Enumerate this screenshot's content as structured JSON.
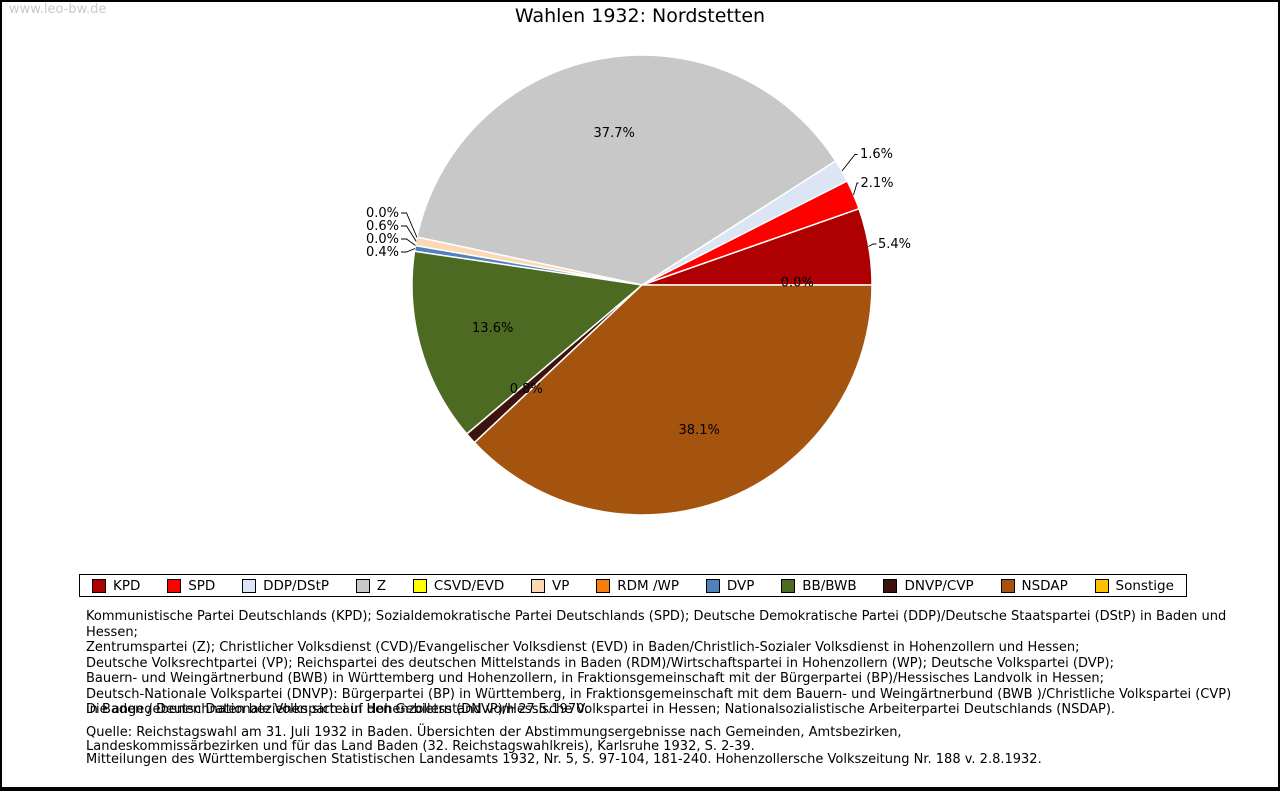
{
  "watermark": "www.leo-bw.de",
  "title": "Wahlen 1932: Nordstetten",
  "chart_data": {
    "type": "pie",
    "title": "Wahlen 1932: Nordstetten",
    "start_angle_deg": 0,
    "direction": "counterclockwise",
    "legend_position": "bottom",
    "unit": "percent",
    "slices": [
      {
        "name": "KPD",
        "value": 5.4,
        "label": "5.4%",
        "color": "#ae0000"
      },
      {
        "name": "SPD",
        "value": 2.1,
        "label": "2.1%",
        "color": "#ff0000"
      },
      {
        "name": "DDP/DStP",
        "value": 1.6,
        "label": "1.6%",
        "color": "#dbe5f3"
      },
      {
        "name": "Z",
        "value": 37.7,
        "label": "37.7%",
        "color": "#c8c8c8"
      },
      {
        "name": "CSVD/EVD",
        "value": 0.0,
        "label": "0.0%",
        "color": "#ffff00"
      },
      {
        "name": "VP",
        "value": 0.6,
        "label": "0.6%",
        "color": "#fcd8b4"
      },
      {
        "name": "RDM /WP",
        "value": 0.0,
        "label": "0.0%",
        "color": "#f57e0f"
      },
      {
        "name": "DVP",
        "value": 0.4,
        "label": "0.4%",
        "color": "#4f81bd"
      },
      {
        "name": "BB/BWB",
        "value": 13.6,
        "label": "13.6%",
        "color": "#4c6a21"
      },
      {
        "name": "DNVP/CVP",
        "value": 0.8,
        "label": "0.8%",
        "color": "#3d130d"
      },
      {
        "name": "NSDAP",
        "value": 38.1,
        "label": "38.1%",
        "color": "#a5540f"
      },
      {
        "name": "Sonstige",
        "value": 0.0,
        "label": "0.0%",
        "color": "#ffc000"
      }
    ]
  },
  "notes": {
    "definitions": [
      "Kommunistische Partei Deutschlands (KPD); Sozialdemokratische Partei Deutschlands (SPD); Deutsche Demokratische Partei (DDP)/Deutsche Staatspartei (DStP) in Baden und Hessen;",
      "Zentrumspartei (Z); Christlicher Volksdienst (CVD)/Evangelischer Volksdienst (EVD) in Baden/Christlich-Sozialer Volksdienst in Hohenzollern und Hessen;",
      "Deutsche Volksrechtpartei (VP); Reichspartei des deutschen Mittelstands in Baden (RDM)/Wirtschaftspartei in Hohenzollern (WP); Deutsche Volkspartei (DVP);",
      "Bauern- und Weingärtnerbund (BWB) in Württemberg und Hohenzollern, in Fraktionsgemeinschaft mit der Bürgerpartei (BP)/Hessisches Landvolk in Hessen;",
      "Deutsch-Nationale Volkspartei (DNVP): Bürgerpartei (BP) in Württemberg, in Fraktionsgemeinschaft mit dem Bauern- und Weingärtnerbund (BWB )/Christliche Volkspartei (CVP)",
      "in Baden / Deutschnationale Volkspartei in Hohenzollern (DNVP)/Hessische Volkspartei in Hessen; Nationalsozialistische Arbeiterpartei Deutschlands (NSDAP)."
    ],
    "territory": "Die angegebenen Daten beziehen sich auf den Gebietsstand vom 27.5.1970.",
    "source": [
      "Quelle: Reichstagswahl am 31. Juli 1932 in Baden. Übersichten der Abstimmungsergebnisse nach Gemeinden, Amtsbezirken,",
      "Landeskommissärbezirken und für das Land Baden (32. Reichstagswahlkreis), Karlsruhe 1932, S. 2-39.",
      "Mitteilungen des Württembergischen Statistischen Landesamts 1932, Nr. 5, S. 97-104, 181-240. Hohenzollersche Volkszeitung Nr. 188 v. 2.8.1932."
    ]
  }
}
